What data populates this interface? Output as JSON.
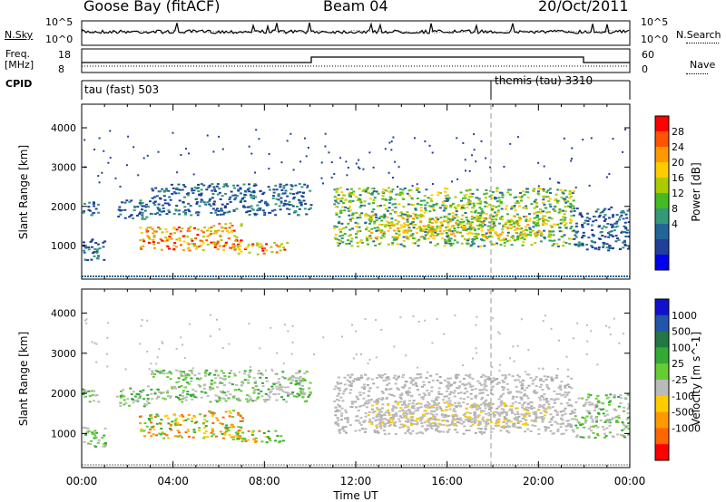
{
  "header": {
    "station": "Goose Bay (fitACF)",
    "beam": "Beam 04",
    "date": "20/Oct/2011"
  },
  "strip_panels": {
    "noise": {
      "left_label": "N.Sky",
      "right_label": "N.Search",
      "left_ticks": [
        "10^5",
        "10^0"
      ],
      "right_ticks": [
        "10^5",
        "10^0"
      ]
    },
    "freq": {
      "left_label_1": "Freq.",
      "left_label_2": "[MHz]",
      "right_label": "Nave",
      "left_ticks": [
        "18",
        "8"
      ],
      "right_ticks": [
        "60",
        "0"
      ]
    },
    "cpid": {
      "label": "CPID",
      "mode_1": "tau (fast) 503",
      "mode_2": "themis (tau) 3310"
    }
  },
  "power_panel": {
    "ylabel": "Slant Range [km]",
    "colorbar_label": "Power [dB]",
    "colorbar_ticks": [
      "28",
      "24",
      "20",
      "16",
      "12",
      "8",
      "4"
    ],
    "colorbar_colors": [
      "#ff0000",
      "#ff5500",
      "#ff9900",
      "#ffcc00",
      "#aacc00",
      "#44bb22",
      "#339977",
      "#226699",
      "#1f3f99",
      "#0000ee"
    ]
  },
  "velocity_panel": {
    "ylabel": "Slant Range [km]",
    "colorbar_label": "Velocity [m s^-1]",
    "colorbar_ticks": [
      "1000",
      "500",
      "100",
      "25",
      "-25",
      "-100",
      "-500",
      "-1000"
    ],
    "colorbar_colors": [
      "#1111cc",
      "#2255aa",
      "#227744",
      "#33aa33",
      "#66cc33",
      "#bbbbbb",
      "#ffcc00",
      "#ff9900",
      "#ff6600",
      "#ff0000"
    ]
  },
  "x_axis": {
    "label": "Time UT",
    "ticks": [
      "00:00",
      "04:00",
      "08:00",
      "12:00",
      "16:00",
      "20:00",
      "00:00"
    ]
  },
  "chart_data": [
    {
      "type": "heatmap",
      "name": "power",
      "ylabel": "Slant Range [km]",
      "y_ticks": [
        1000,
        2000,
        3000,
        4000
      ],
      "ylim": [
        150,
        4600
      ],
      "xlim": [
        0,
        24
      ],
      "x_ticks": [
        "00:00",
        "04:00",
        "08:00",
        "12:00",
        "16:00",
        "20:00",
        "00:00"
      ],
      "colorbar": {
        "label": "Power [dB]",
        "ticks": [
          28,
          24,
          20,
          16,
          12,
          8,
          4
        ]
      },
      "mode_change_hour": 18.0,
      "regions": [
        {
          "t0": 0.0,
          "t1": 0.7,
          "r0": 1800,
          "r1": 2200,
          "level": "low"
        },
        {
          "t0": 0.0,
          "t1": 1.0,
          "r0": 650,
          "r1": 1200,
          "level": "low"
        },
        {
          "t0": 1.5,
          "t1": 3.0,
          "r0": 1700,
          "r1": 2200,
          "level": "low"
        },
        {
          "t0": 2.5,
          "t1": 5.5,
          "r0": 900,
          "r1": 1500,
          "level": "high"
        },
        {
          "t0": 5.5,
          "t1": 7.0,
          "r0": 900,
          "r1": 1600,
          "level": "high"
        },
        {
          "t0": 6.5,
          "t1": 9.0,
          "r0": 800,
          "r1": 1100,
          "level": "high"
        },
        {
          "t0": 3.0,
          "t1": 10.0,
          "r0": 1800,
          "r1": 2600,
          "level": "low"
        },
        {
          "t0": 11.0,
          "t1": 21.5,
          "r0": 1000,
          "r1": 2500,
          "level": "mid"
        },
        {
          "t0": 12.5,
          "t1": 20.5,
          "r0": 1200,
          "r1": 1800,
          "level": "mid-high"
        },
        {
          "t0": 21.5,
          "t1": 24.0,
          "r0": 900,
          "r1": 2000,
          "level": "low"
        }
      ]
    },
    {
      "type": "heatmap",
      "name": "velocity",
      "ylabel": "Slant Range [km]",
      "y_ticks": [
        1000,
        2000,
        3000,
        4000
      ],
      "ylim": [
        150,
        4600
      ],
      "xlim": [
        0,
        24
      ],
      "x_ticks": [
        "00:00",
        "04:00",
        "08:00",
        "12:00",
        "16:00",
        "20:00",
        "00:00"
      ],
      "colorbar": {
        "label": "Velocity [m s^-1]",
        "ticks": [
          1000,
          500,
          100,
          25,
          -25,
          -100,
          -500,
          -1000
        ]
      },
      "mode_change_hour": 18.0
    }
  ]
}
